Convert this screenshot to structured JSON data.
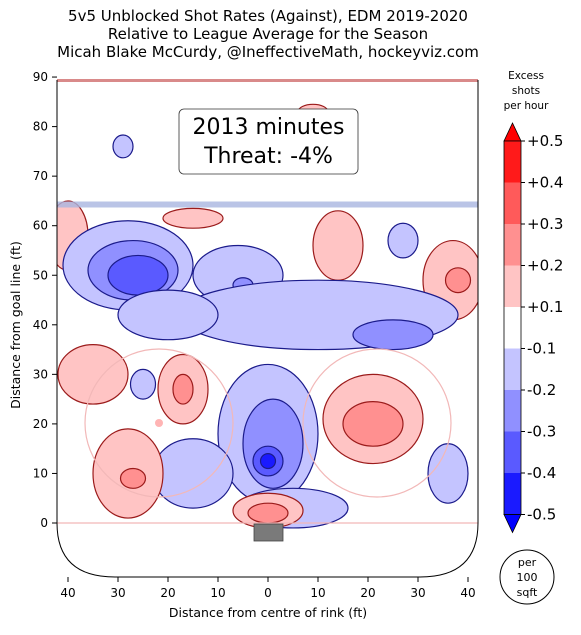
{
  "chart_data": {
    "type": "heatmap",
    "title": [
      "5v5 Unblocked Shot Rates (Against), EDM 2019-2020",
      "Relative to League Average for the Season",
      "Micah Blake McCurdy, @IneffectiveMath, hockeyviz.com"
    ],
    "xlabel": "Distance from centre of rink (ft)",
    "ylabel": "Distance from goal line (ft)",
    "x_ticks": [
      "40",
      "30",
      "20",
      "10",
      "0",
      "10",
      "20",
      "30",
      "40"
    ],
    "y_ticks": [
      0,
      10,
      20,
      30,
      40,
      50,
      60,
      70,
      80,
      90
    ],
    "xlim": [
      -42,
      42
    ],
    "ylim": [
      -11,
      90
    ],
    "annotation": [
      "2013 minutes",
      "Threat: -4%"
    ],
    "colorbar": {
      "title": [
        "Excess",
        "shots",
        "per hour"
      ],
      "ticks": [
        "+0.5",
        "+0.4",
        "+0.3",
        "+0.2",
        "+0.1",
        "-0.1",
        "-0.2",
        "-0.3",
        "-0.4",
        "-0.5"
      ],
      "colors": [
        "#ff1a1a",
        "#ff5a5a",
        "#ff9090",
        "#ffc4c4",
        "#ffffff",
        "#c4c4ff",
        "#9090ff",
        "#5a5aff",
        "#1a1aff"
      ]
    },
    "unit_badge": [
      "per",
      "100",
      "sqft"
    ],
    "regions": [
      {
        "level": 0.2,
        "cx": -40,
        "cy": 58,
        "rx": 4,
        "ry": 7
      },
      {
        "level": -0.2,
        "cx": -29,
        "cy": 76,
        "rx": 2,
        "ry": 2.3
      },
      {
        "level": -0.2,
        "cx": -28,
        "cy": 52,
        "rx": 13,
        "ry": 9
      },
      {
        "level": -0.3,
        "cx": -27,
        "cy": 51,
        "rx": 9,
        "ry": 6
      },
      {
        "level": -0.4,
        "cx": -26,
        "cy": 50,
        "rx": 6,
        "ry": 4
      },
      {
        "level": -0.2,
        "cx": -6,
        "cy": 50,
        "rx": 9,
        "ry": 6
      },
      {
        "level": -0.3,
        "cx": -5,
        "cy": 48,
        "rx": 2,
        "ry": 1.5
      },
      {
        "level": 0.2,
        "cx": -15,
        "cy": 61.5,
        "rx": 6,
        "ry": 2
      },
      {
        "level": 0.2,
        "cx": 9,
        "cy": 83,
        "rx": 3,
        "ry": 1.5
      },
      {
        "level": 0.2,
        "cx": 14,
        "cy": 56,
        "rx": 5,
        "ry": 7
      },
      {
        "level": -0.2,
        "cx": 27,
        "cy": 57,
        "rx": 3,
        "ry": 3.5
      },
      {
        "level": 0.2,
        "cx": 37,
        "cy": 49,
        "rx": 6,
        "ry": 8
      },
      {
        "level": 0.3,
        "cx": 38,
        "cy": 49,
        "rx": 2.5,
        "ry": 2.5
      },
      {
        "level": -0.2,
        "cx": 10,
        "cy": 42,
        "rx": 28,
        "ry": 7
      },
      {
        "level": -0.3,
        "cx": 25,
        "cy": 38,
        "rx": 8,
        "ry": 3
      },
      {
        "level": -0.2,
        "cx": -20,
        "cy": 42,
        "rx": 10,
        "ry": 5
      },
      {
        "level": 0.2,
        "cx": -35,
        "cy": 30,
        "rx": 7,
        "ry": 6
      },
      {
        "level": -0.2,
        "cx": -25,
        "cy": 28,
        "rx": 2.5,
        "ry": 3
      },
      {
        "level": 0.2,
        "cx": -17,
        "cy": 27,
        "rx": 5,
        "ry": 7
      },
      {
        "level": 0.3,
        "cx": -17,
        "cy": 27,
        "rx": 2,
        "ry": 3
      },
      {
        "level": -0.2,
        "cx": 0,
        "cy": 18,
        "rx": 10,
        "ry": 14
      },
      {
        "level": -0.3,
        "cx": 1,
        "cy": 16,
        "rx": 6,
        "ry": 9
      },
      {
        "level": -0.4,
        "cx": 0,
        "cy": 12.5,
        "rx": 3,
        "ry": 3
      },
      {
        "level": -0.5,
        "cx": 0,
        "cy": 12.5,
        "rx": 1.5,
        "ry": 1.5
      },
      {
        "level": -0.2,
        "cx": -15,
        "cy": 10,
        "rx": 8,
        "ry": 7
      },
      {
        "level": 0.2,
        "cx": 21,
        "cy": 21,
        "rx": 10,
        "ry": 9
      },
      {
        "level": 0.3,
        "cx": 21,
        "cy": 20,
        "rx": 6,
        "ry": 4.5
      },
      {
        "level": 0.2,
        "cx": -28,
        "cy": 10,
        "rx": 7,
        "ry": 9
      },
      {
        "level": 0.3,
        "cx": -27,
        "cy": 9,
        "rx": 2.5,
        "ry": 2
      },
      {
        "level": -0.2,
        "cx": 36,
        "cy": 10,
        "rx": 4,
        "ry": 6
      },
      {
        "level": -0.2,
        "cx": 5,
        "cy": 3,
        "rx": 11,
        "ry": 4
      },
      {
        "level": 0.2,
        "cx": 0,
        "cy": 2.5,
        "rx": 7,
        "ry": 3.5
      },
      {
        "level": 0.3,
        "cx": 0,
        "cy": 2,
        "rx": 4,
        "ry": 2
      }
    ]
  }
}
